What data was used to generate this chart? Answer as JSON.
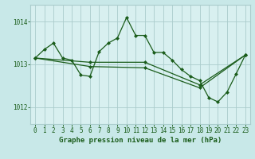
{
  "title": "Graphe pression niveau de la mer (hPa)",
  "bg_color": "#c8e8e8",
  "plot_bg_color": "#d8f0f0",
  "grid_color": "#aacccc",
  "line_color": "#1a5c1a",
  "marker_color": "#1a5c1a",
  "ylim": [
    1011.6,
    1014.4
  ],
  "yticks": [
    1012,
    1013,
    1014
  ],
  "xlim": [
    -0.5,
    23.5
  ],
  "xticks": [
    0,
    1,
    2,
    3,
    4,
    5,
    6,
    7,
    8,
    9,
    10,
    11,
    12,
    13,
    14,
    15,
    16,
    17,
    18,
    19,
    20,
    21,
    22,
    23
  ],
  "series1": {
    "x": [
      0,
      1,
      2,
      3,
      4,
      5,
      6,
      7,
      8,
      9,
      10,
      11,
      12,
      13,
      14,
      15,
      16,
      17,
      18,
      19,
      20,
      21,
      22,
      23
    ],
    "y": [
      1013.15,
      1013.35,
      1013.5,
      1013.15,
      1013.1,
      1012.75,
      1012.72,
      1013.3,
      1013.5,
      1013.62,
      1014.1,
      1013.68,
      1013.68,
      1013.28,
      1013.28,
      1013.1,
      1012.88,
      1012.72,
      1012.62,
      1012.22,
      1012.12,
      1012.35,
      1012.78,
      1013.22
    ]
  },
  "series2": {
    "x": [
      0,
      6,
      12,
      18,
      23
    ],
    "y": [
      1013.15,
      1013.05,
      1013.05,
      1012.52,
      1013.22
    ]
  },
  "series3": {
    "x": [
      0,
      6,
      12,
      18,
      23
    ],
    "y": [
      1013.15,
      1012.95,
      1012.92,
      1012.45,
      1013.22
    ]
  },
  "tick_fontsize": 5.5,
  "xlabel_fontsize": 6.5
}
